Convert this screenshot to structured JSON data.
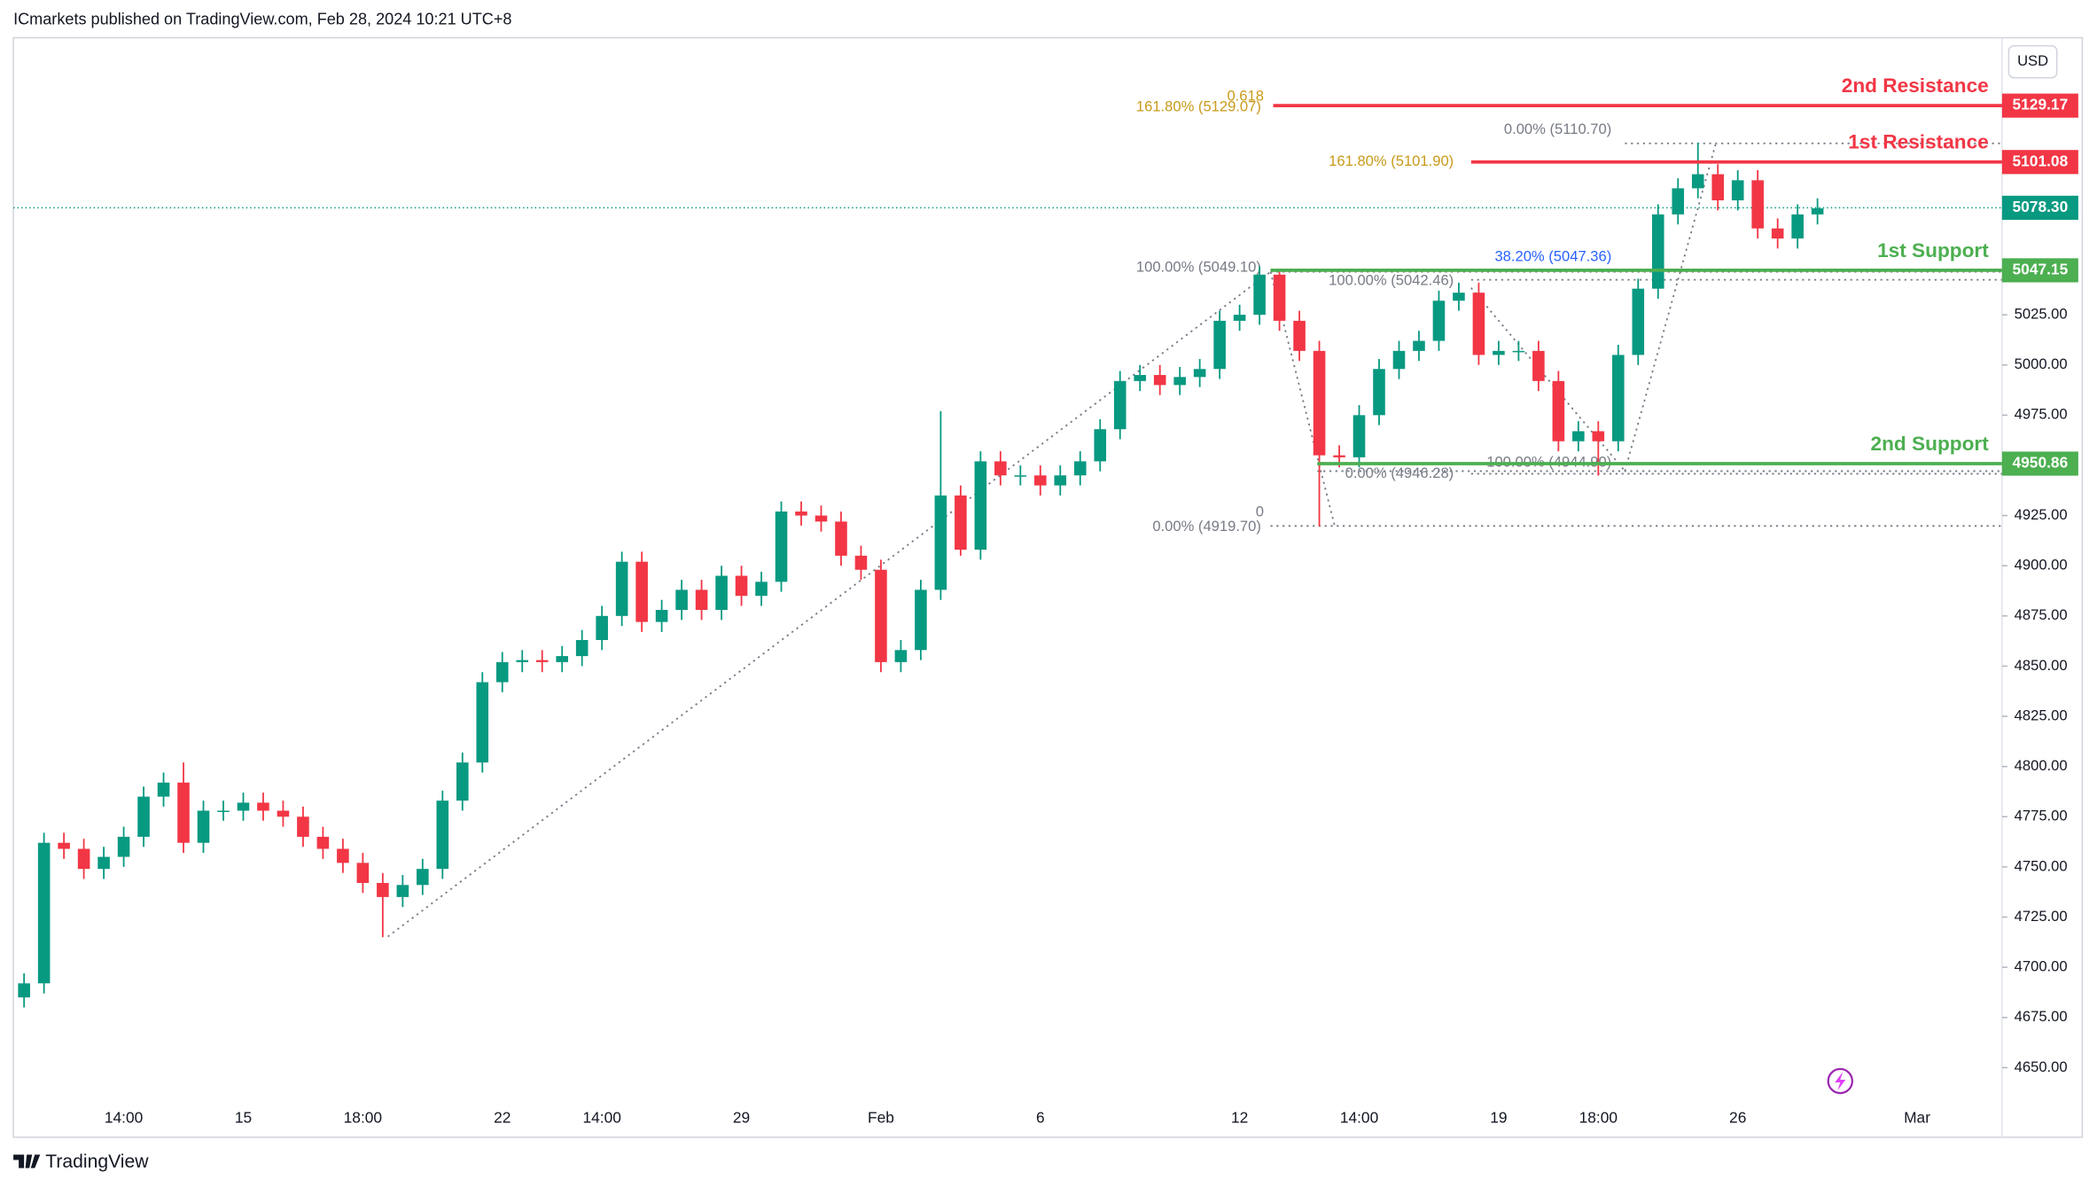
{
  "header": {
    "publisher": "ICmarkets published on TradingView.com, Feb 28, 2024 10:21 UTC+8",
    "brand": "TradingView",
    "currency": "USD"
  },
  "chart_data": {
    "type": "candlestick",
    "x": [
      null,
      null,
      null,
      null,
      null,
      "14:00",
      null,
      null,
      null,
      null,
      null,
      "15",
      null,
      null,
      null,
      null,
      null,
      "18:00",
      null,
      null,
      null,
      null,
      null,
      null,
      "22",
      null,
      null,
      null,
      null,
      "14:00",
      null,
      null,
      null,
      null,
      null,
      null,
      "29",
      null,
      null,
      null,
      null,
      null,
      null,
      "Feb",
      null,
      null,
      null,
      null,
      null,
      null,
      null,
      "6",
      null,
      null,
      null,
      null,
      null,
      null,
      null,
      null,
      null,
      "12",
      null,
      null,
      null,
      null,
      null,
      "14:00",
      null,
      null,
      null,
      null,
      null,
      null,
      "19",
      null,
      null,
      null,
      null,
      "18:00",
      null,
      null,
      null,
      null,
      null,
      null,
      "26",
      null,
      null,
      null,
      null,
      null,
      null,
      null,
      null,
      "Mar"
    ],
    "open": [
      4685,
      4692,
      4762,
      4759,
      4749,
      4755,
      4765,
      4785,
      4792,
      4762,
      4778,
      4778,
      4782,
      4778,
      4775,
      4765,
      4759,
      4752,
      4742,
      4735,
      4741,
      4749,
      4783,
      4802,
      4842,
      4852,
      4853,
      4852,
      4855,
      4863,
      4875,
      4902,
      4872,
      4878,
      4888,
      4878,
      4895,
      4885,
      4892,
      4927,
      4925,
      4922,
      4905,
      4898,
      4852,
      4858,
      4888,
      4935,
      4908,
      4952,
      4945,
      4945,
      4940,
      4945,
      4952,
      4968,
      4992,
      4995,
      4990,
      4994,
      4998,
      5022,
      5025,
      5045,
      5022,
      5007,
      4955,
      4954,
      4975,
      4998,
      5007,
      5012,
      5032,
      5036,
      5005,
      5007,
      5007,
      4992,
      4962,
      4967,
      4962,
      5005,
      5038,
      5075,
      5088,
      5095,
      5082,
      5092,
      5068,
      5063,
      5075,
      null,
      null,
      null,
      null,
      null
    ],
    "high": [
      4697,
      4767,
      4767,
      4764,
      4760,
      4770,
      4790,
      4797,
      4802,
      4783,
      4783,
      4787,
      4787,
      4783,
      4780,
      4770,
      4764,
      4757,
      4747,
      4746,
      4754,
      4788,
      4807,
      4847,
      4857,
      4858,
      4858,
      4860,
      4868,
      4880,
      4907,
      4907,
      4883,
      4893,
      4893,
      4900,
      4900,
      4897,
      4932,
      4932,
      4930,
      4927,
      4910,
      4903,
      4863,
      4893,
      4977,
      4940,
      4957,
      4957,
      4950,
      4950,
      4950,
      4957,
      4973,
      4997,
      5000,
      5000,
      4999,
      5003,
      5027,
      5030,
      5049.1,
      5047,
      5027,
      5012,
      4960,
      4980,
      5003,
      5012,
      5017,
      5037,
      5041,
      5041,
      5012,
      5012,
      5012,
      4997,
      4972,
      4972,
      5010,
      5043,
      5080,
      5093,
      5110.7,
      5100,
      5097,
      5097,
      5073,
      5080,
      5083,
      null,
      null,
      null,
      null,
      null
    ],
    "low": [
      4680,
      4687,
      4754,
      4744,
      4744,
      4750,
      4760,
      4780,
      4757,
      4757,
      4773,
      4773,
      4773,
      4770,
      4760,
      4754,
      4747,
      4737,
      4715,
      4730,
      4736,
      4744,
      4778,
      4797,
      4837,
      4847,
      4847,
      4847,
      4850,
      4858,
      4870,
      4867,
      4867,
      4873,
      4873,
      4873,
      4880,
      4880,
      4887,
      4920,
      4917,
      4900,
      4893,
      4847,
      4847,
      4853,
      4883,
      4905,
      4903,
      4940,
      4940,
      4935,
      4935,
      4940,
      4947,
      4963,
      4987,
      4985,
      4985,
      4989,
      4993,
      5017,
      5020,
      5017,
      5002,
      4919.7,
      4949,
      4949,
      4970,
      4993,
      5002,
      5007,
      5027,
      5000,
      5000,
      5002,
      4987,
      4957,
      4957,
      4944.9,
      4957,
      5000,
      5033,
      5070,
      5083,
      5077,
      5077,
      5063,
      5058,
      5058,
      5070,
      null,
      null,
      null,
      null,
      null
    ],
    "close": [
      4692,
      4762,
      4759,
      4749,
      4755,
      4765,
      4785,
      4792,
      4762,
      4778,
      4778,
      4782,
      4778,
      4775,
      4765,
      4759,
      4752,
      4742,
      4735,
      4741,
      4749,
      4783,
      4802,
      4842,
      4852,
      4853,
      4852,
      4855,
      4863,
      4875,
      4902,
      4872,
      4878,
      4888,
      4878,
      4895,
      4885,
      4892,
      4927,
      4925,
      4922,
      4905,
      4898,
      4852,
      4858,
      4888,
      4935,
      4908,
      4952,
      4945,
      4945,
      4940,
      4945,
      4952,
      4968,
      4992,
      4995,
      4990,
      4994,
      4998,
      5022,
      5025,
      5045,
      5022,
      5007,
      4955,
      4954,
      4975,
      4998,
      5007,
      5012,
      5032,
      5036,
      5005,
      5007,
      5007,
      4992,
      4962,
      4967,
      4962,
      5005,
      5038,
      5075,
      5088,
      5095,
      5082,
      5092,
      5068,
      5063,
      5075,
      5078,
      null,
      null,
      null,
      null,
      null
    ],
    "up_color": "#089981",
    "down_color": "#f23645",
    "ylim": [
      4634,
      5163
    ],
    "yticks": [
      {
        "value": 4650,
        "label": "4650.00"
      },
      {
        "value": 4675,
        "label": "4675.00"
      },
      {
        "value": 4700,
        "label": "4700.00"
      },
      {
        "value": 4725,
        "label": "4725.00"
      },
      {
        "value": 4750,
        "label": "4750.00"
      },
      {
        "value": 4775,
        "label": "4775.00"
      },
      {
        "value": 4800,
        "label": "4800.00"
      },
      {
        "value": 4825,
        "label": "4825.00"
      },
      {
        "value": 4850,
        "label": "4850.00"
      },
      {
        "value": 4875,
        "label": "4875.00"
      },
      {
        "value": 4900,
        "label": "4900.00"
      },
      {
        "value": 4925,
        "label": "4925.00"
      },
      {
        "value": 4950,
        "label": "4950.00"
      },
      {
        "value": 4975,
        "label": "4975.00"
      },
      {
        "value": 5000,
        "label": "5000.00"
      },
      {
        "value": 5025,
        "label": "5025.00"
      }
    ],
    "grid": false,
    "last_price": {
      "value": 5078.3,
      "label": "5078.30",
      "color": "#089981"
    },
    "levels": [
      {
        "name": "2nd Resistance",
        "value": 5129.17,
        "color": "#f23645"
      },
      {
        "name": "1st Resistance",
        "value": 5101.08,
        "color": "#f23645"
      },
      {
        "name": "1st Support",
        "value": 5047.15,
        "color": "#4caf50"
      },
      {
        "name": "2nd Support",
        "value": 4950.86,
        "color": "#4caf50"
      }
    ],
    "annotations": [
      {
        "text": "0.618",
        "color": "#c99a1a"
      },
      {
        "text": "161.80% (5129.07)",
        "color": "#c99a1a"
      },
      {
        "text": "0.00% (5110.70)",
        "color": "#787b86"
      },
      {
        "text": "161.80% (5101.90)",
        "color": "#c99a1a"
      },
      {
        "text": "100.00% (5049.10)",
        "color": "#787b86"
      },
      {
        "text": "38.20% (5047.36)",
        "color": "#2962ff"
      },
      {
        "text": "100.00% (5042.46)",
        "color": "#787b86"
      },
      {
        "text": "0.00% (4946.28)",
        "color": "#787b86"
      },
      {
        "text": "100.00% (4944.90)",
        "color": "#787b86"
      },
      {
        "text": "0",
        "color": "#787b86"
      },
      {
        "text": "0.00% (4919.70)",
        "color": "#787b86"
      }
    ]
  }
}
